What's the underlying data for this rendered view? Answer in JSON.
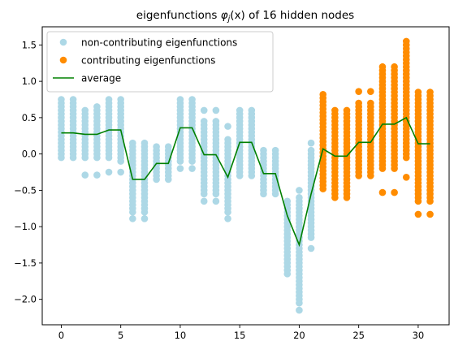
{
  "chart_data": {
    "type": "scatter",
    "title": "eigenfunctions φj(x) of 16 hidden nodes",
    "title_parts": {
      "prefix": "eigenfunctions ",
      "phi": "φ",
      "sub": "j",
      "arg": "(x)",
      "suffix": " of 16 hidden nodes"
    },
    "xlabel": "",
    "ylabel": "",
    "xlim": [
      -1.6,
      32.6
    ],
    "ylim": [
      -2.35,
      1.75
    ],
    "xticks": [
      0,
      5,
      10,
      15,
      20,
      25,
      30
    ],
    "yticks": [
      -2.0,
      -1.5,
      -1.0,
      -0.5,
      0.0,
      0.5,
      1.0,
      1.5
    ],
    "grid": false,
    "legend_placement": "upper-left",
    "legend": [
      {
        "label": "non-contributing eigenfunctions",
        "kind": "marker",
        "color": "#add8e6"
      },
      {
        "label": "contributing eigenfunctions",
        "kind": "marker",
        "color": "#ff8c00"
      },
      {
        "label": "average",
        "kind": "line",
        "color": "#008000"
      }
    ],
    "series": [
      {
        "name": "non-contributing eigenfunctions",
        "color": "#add8e6",
        "columns": [
          {
            "x": 0,
            "min": -0.05,
            "max": 0.73,
            "outliers": []
          },
          {
            "x": 1,
            "min": -0.05,
            "max": 0.73,
            "outliers": []
          },
          {
            "x": 2,
            "min": -0.05,
            "max": 0.62,
            "outliers": [
              -0.29
            ]
          },
          {
            "x": 3,
            "min": -0.05,
            "max": 0.67,
            "outliers": [
              -0.29
            ]
          },
          {
            "x": 4,
            "min": -0.05,
            "max": 0.77,
            "outliers": [
              -0.25
            ]
          },
          {
            "x": 5,
            "min": -0.1,
            "max": 0.77,
            "outliers": [
              -0.25
            ]
          },
          {
            "x": 6,
            "min": -0.8,
            "max": 0.15,
            "outliers": [
              -0.89
            ]
          },
          {
            "x": 7,
            "min": -0.8,
            "max": 0.15,
            "outliers": [
              -0.89
            ]
          },
          {
            "x": 8,
            "min": -0.35,
            "max": 0.1,
            "outliers": []
          },
          {
            "x": 9,
            "min": -0.35,
            "max": 0.1,
            "outliers": []
          },
          {
            "x": 10,
            "min": -0.1,
            "max": 0.77,
            "outliers": [
              -0.2
            ]
          },
          {
            "x": 11,
            "min": -0.1,
            "max": 0.77,
            "outliers": [
              -0.2
            ]
          },
          {
            "x": 12,
            "min": -0.55,
            "max": 0.46,
            "outliers": [
              0.6,
              -0.65
            ]
          },
          {
            "x": 13,
            "min": -0.55,
            "max": 0.46,
            "outliers": [
              0.6,
              -0.65
            ]
          },
          {
            "x": 14,
            "min": -0.8,
            "max": 0.2,
            "outliers": [
              0.38,
              -0.89
            ]
          },
          {
            "x": 15,
            "min": -0.3,
            "max": 0.6,
            "outliers": []
          },
          {
            "x": 16,
            "min": -0.3,
            "max": 0.6,
            "outliers": []
          },
          {
            "x": 17,
            "min": -0.55,
            "max": 0.05,
            "outliers": []
          },
          {
            "x": 18,
            "min": -0.55,
            "max": 0.05,
            "outliers": []
          },
          {
            "x": 19,
            "min": -1.65,
            "max": -0.65,
            "outliers": []
          },
          {
            "x": 20,
            "min": -2.05,
            "max": -0.6,
            "outliers": [
              -0.5,
              -2.15
            ]
          },
          {
            "x": 21,
            "min": -1.15,
            "max": 0.05,
            "outliers": [
              0.15,
              -1.3
            ]
          }
        ]
      },
      {
        "name": "contributing eigenfunctions",
        "color": "#ff8c00",
        "columns": [
          {
            "x": 22,
            "min": -0.48,
            "max": 0.8,
            "outliers": []
          },
          {
            "x": 23,
            "min": -0.6,
            "max": 0.6,
            "outliers": []
          },
          {
            "x": 24,
            "min": -0.6,
            "max": 0.6,
            "outliers": []
          },
          {
            "x": 25,
            "min": -0.3,
            "max": 0.7,
            "outliers": [
              0.86
            ]
          },
          {
            "x": 26,
            "min": -0.3,
            "max": 0.7,
            "outliers": [
              0.86
            ]
          },
          {
            "x": 27,
            "min": -0.2,
            "max": 1.2,
            "outliers": [
              -0.53
            ]
          },
          {
            "x": 28,
            "min": -0.2,
            "max": 1.2,
            "outliers": [
              -0.53
            ]
          },
          {
            "x": 29,
            "min": -0.05,
            "max": 1.57,
            "outliers": [
              -0.32
            ]
          },
          {
            "x": 30,
            "min": -0.65,
            "max": 0.85,
            "outliers": [
              -0.83
            ]
          },
          {
            "x": 31,
            "min": -0.65,
            "max": 0.85,
            "outliers": [
              -0.83
            ]
          }
        ]
      },
      {
        "name": "average",
        "color": "#008000",
        "x": [
          0,
          1,
          2,
          3,
          4,
          5,
          6,
          7,
          8,
          9,
          10,
          11,
          12,
          13,
          14,
          15,
          16,
          17,
          18,
          19,
          20,
          21,
          22,
          23,
          24,
          25,
          26,
          27,
          28,
          29,
          30,
          31
        ],
        "y": [
          0.29,
          0.29,
          0.27,
          0.27,
          0.33,
          0.33,
          -0.35,
          -0.35,
          -0.13,
          -0.13,
          0.36,
          0.36,
          -0.01,
          -0.01,
          -0.32,
          0.16,
          0.16,
          -0.27,
          -0.27,
          -0.85,
          -1.25,
          -0.55,
          0.07,
          -0.03,
          -0.03,
          0.16,
          0.16,
          0.41,
          0.41,
          0.5,
          0.14,
          0.14
        ]
      }
    ]
  }
}
